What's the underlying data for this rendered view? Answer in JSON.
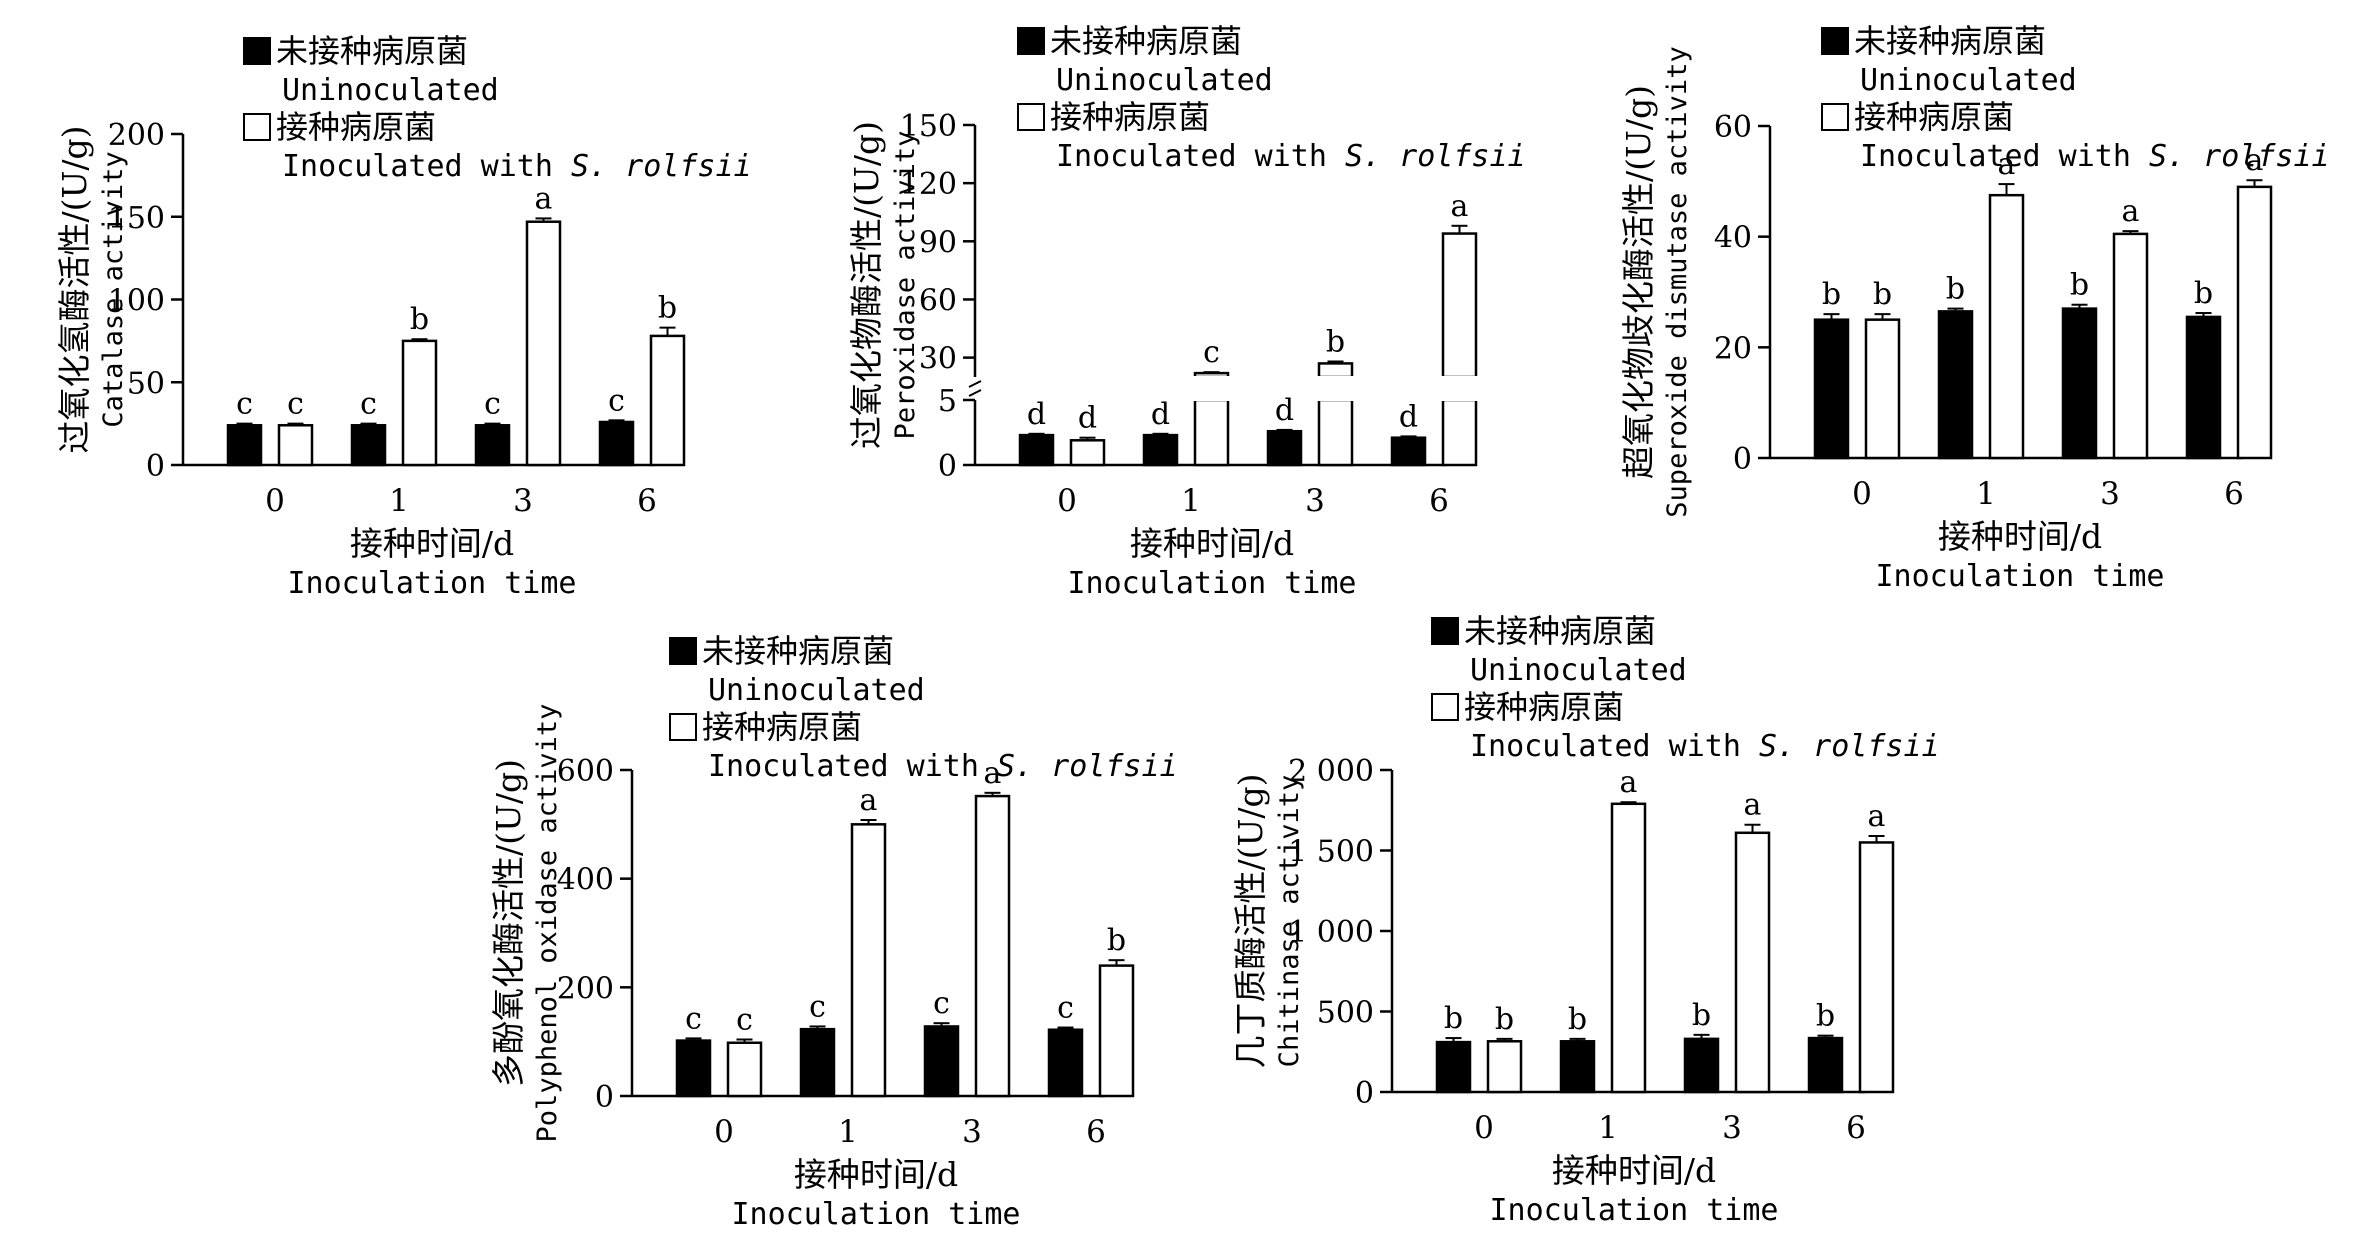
{
  "legend": {
    "uninoculated_cn": "未接种病原菌",
    "uninoculated_en": "Uninoculated",
    "inoculated_cn": "接种病原菌",
    "inoculated_en": "Inoculated with ",
    "pathogen": "S. rolfsii"
  },
  "xaxis": {
    "label_cn": "接种时间/d",
    "label_en": "Inoculation time"
  },
  "colors": {
    "uninoculated": "#000000",
    "inoculated": "#ffffff",
    "stroke": "#000000"
  },
  "chart_data": [
    {
      "id": "catalase",
      "type": "bar",
      "title": "",
      "ylabel_cn": "过氧化氢酶活性/(U/g)",
      "ylabel_en": "Catalase activity",
      "categories": [
        "0",
        "1",
        "3",
        "6"
      ],
      "ylim": [
        0,
        200
      ],
      "yticks": [
        0,
        50,
        100,
        150,
        200
      ],
      "ytick_labels": [
        "0",
        "50",
        "100",
        "150",
        "200"
      ],
      "axis_break": false,
      "series": [
        {
          "name": "Uninoculated",
          "values": [
            24,
            24,
            24,
            26
          ],
          "errors": [
            1,
            1,
            1,
            1
          ],
          "letters": [
            "c",
            "c",
            "c",
            "c"
          ]
        },
        {
          "name": "Inoculated with S. rolfsii",
          "values": [
            24,
            75,
            147,
            78
          ],
          "errors": [
            1,
            1,
            2,
            5
          ],
          "letters": [
            "c",
            "b",
            "a",
            "b"
          ]
        }
      ]
    },
    {
      "id": "peroxidase",
      "type": "bar",
      "title": "",
      "ylabel_cn": "过氧化物酶活性/(U/g)",
      "ylabel_en": "Peroxidase activity",
      "categories": [
        "0",
        "1",
        "3",
        "6"
      ],
      "ylim": [
        0,
        150
      ],
      "yticks": [
        0,
        5,
        30,
        60,
        90,
        120,
        150
      ],
      "ytick_labels": [
        "0",
        "5",
        "30",
        "60",
        "90",
        "120",
        "150"
      ],
      "axis_break": true,
      "break_range": [
        5,
        20
      ],
      "series": [
        {
          "name": "Uninoculated",
          "values": [
            2.3,
            2.3,
            2.6,
            2.1
          ],
          "errors": [
            0.1,
            0.1,
            0.1,
            0.1
          ],
          "letters": [
            "d",
            "d",
            "d",
            "d"
          ]
        },
        {
          "name": "Inoculated with S. rolfsii",
          "values": [
            1.9,
            22,
            27,
            94
          ],
          "errors": [
            0.2,
            0.5,
            1,
            4
          ],
          "letters": [
            "d",
            "c",
            "b",
            "a"
          ]
        }
      ]
    },
    {
      "id": "sod",
      "type": "bar",
      "title": "",
      "ylabel_cn": "超氧化物歧化酶活性/(U/g)",
      "ylabel_en": "Superoxide dismutase activity",
      "categories": [
        "0",
        "1",
        "3",
        "6"
      ],
      "ylim": [
        0,
        60
      ],
      "yticks": [
        0,
        20,
        40,
        60
      ],
      "ytick_labels": [
        "0",
        "20",
        "40",
        "60"
      ],
      "axis_break": false,
      "series": [
        {
          "name": "Uninoculated",
          "values": [
            25,
            26.5,
            27,
            25.5
          ],
          "errors": [
            1,
            0.5,
            0.7,
            0.7
          ],
          "letters": [
            "b",
            "b",
            "b",
            "b"
          ]
        },
        {
          "name": "Inoculated with S. rolfsii",
          "values": [
            25,
            47.5,
            40.5,
            49
          ],
          "errors": [
            1,
            2,
            0.5,
            1.2
          ],
          "letters": [
            "b",
            "a",
            "a",
            "a"
          ]
        }
      ]
    },
    {
      "id": "ppo",
      "type": "bar",
      "title": "",
      "ylabel_cn": "多酚氧化酶活性/(U/g)",
      "ylabel_en": "Polyphenol oxidase activity",
      "categories": [
        "0",
        "1",
        "3",
        "6"
      ],
      "ylim": [
        0,
        600
      ],
      "yticks": [
        0,
        200,
        400,
        600
      ],
      "ytick_labels": [
        "0",
        "200",
        "400",
        "600"
      ],
      "axis_break": false,
      "series": [
        {
          "name": "Uninoculated",
          "values": [
            102,
            123,
            128,
            122
          ],
          "errors": [
            4,
            5,
            6,
            4
          ],
          "letters": [
            "c",
            "c",
            "c",
            "c"
          ]
        },
        {
          "name": "Inoculated with S. rolfsii",
          "values": [
            98,
            500,
            552,
            240
          ],
          "errors": [
            6,
            8,
            6,
            10
          ],
          "letters": [
            "c",
            "a",
            "a",
            "b"
          ]
        }
      ]
    },
    {
      "id": "chitinase",
      "type": "bar",
      "title": "",
      "ylabel_cn": "几丁质酶活性/(U/g)",
      "ylabel_en": "Chitinase activity",
      "categories": [
        "0",
        "1",
        "3",
        "6"
      ],
      "ylim": [
        0,
        2000
      ],
      "yticks": [
        0,
        500,
        1000,
        1500,
        2000
      ],
      "ytick_labels": [
        "0",
        "500",
        "1 000",
        "1 500",
        "2 000"
      ],
      "axis_break": false,
      "series": [
        {
          "name": "Uninoculated",
          "values": [
            310,
            315,
            330,
            335
          ],
          "errors": [
            25,
            15,
            25,
            15
          ],
          "letters": [
            "b",
            "b",
            "b",
            "b"
          ]
        },
        {
          "name": "Inoculated with S. rolfsii",
          "values": [
            315,
            1790,
            1610,
            1550
          ],
          "errors": [
            15,
            10,
            50,
            40
          ],
          "letters": [
            "b",
            "a",
            "a",
            "a"
          ]
        }
      ]
    }
  ]
}
